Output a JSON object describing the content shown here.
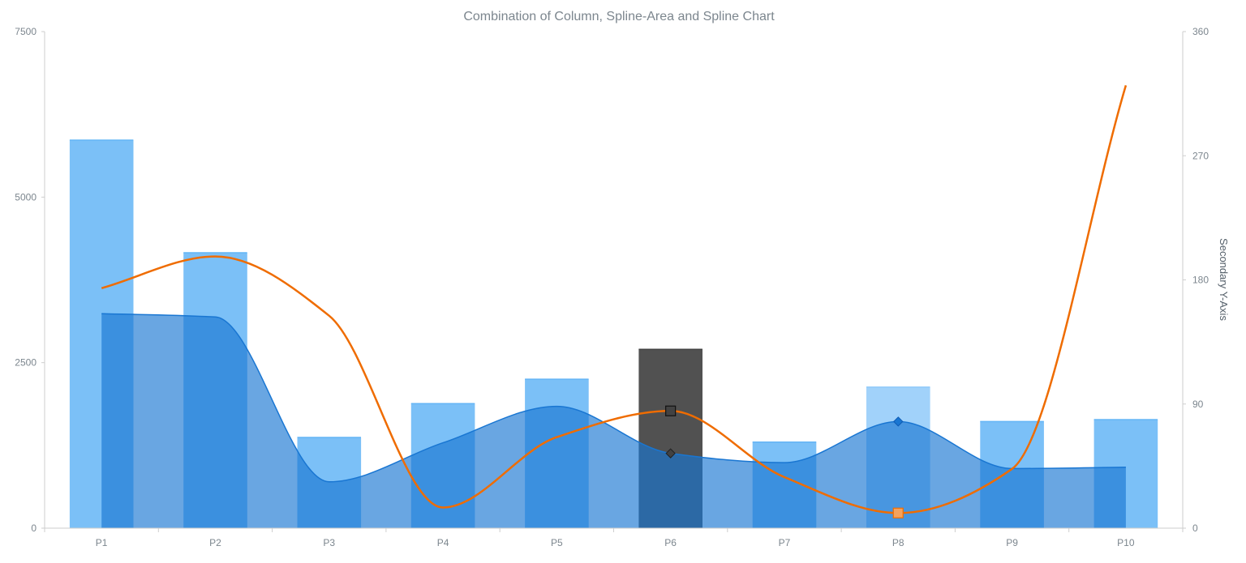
{
  "chart_data": {
    "type": "bar",
    "title": "Combination of Column, Spline-Area and Spline Chart",
    "categories": [
      "P1",
      "P2",
      "P3",
      "P4",
      "P5",
      "P6",
      "P7",
      "P8",
      "P9",
      "P10"
    ],
    "y_axis": {
      "min": 0,
      "max": 7500,
      "ticks": [
        "0",
        "2500",
        "5000",
        "7500"
      ]
    },
    "y2_axis": {
      "title": "Secondary Y-Axis",
      "min": 0,
      "max": 360,
      "ticks": [
        "0",
        "90",
        "180",
        "270",
        "360"
      ]
    },
    "series": [
      {
        "kind": "column",
        "axis": "primary",
        "color": "#64b5f6",
        "highlight": {
          "P6": "#424242",
          "P8": "#90caf9"
        },
        "values": [
          5860,
          4160,
          1370,
          1880,
          2250,
          2700,
          1300,
          2130,
          1610,
          1640
        ]
      },
      {
        "kind": "spline-area",
        "axis": "primary",
        "color": "#1976d2",
        "markers": {
          "P6": "#424242",
          "P8": "#1976d2"
        },
        "values": [
          3240,
          3190,
          700,
          1290,
          1840,
          1130,
          990,
          1610,
          900,
          920
        ]
      },
      {
        "kind": "spline",
        "axis": "secondary",
        "color": "#ef6c00",
        "markers": {
          "P6": "#424242",
          "P8": "#ef6c00"
        },
        "values": [
          174,
          197,
          154,
          15,
          66,
          85,
          37,
          11,
          43,
          321
        ]
      }
    ]
  }
}
